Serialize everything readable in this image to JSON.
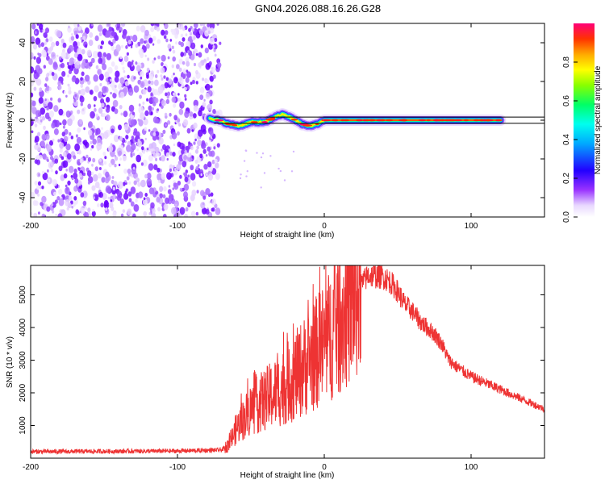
{
  "title": "GN04.2026.088.16.26.G28",
  "chart_data": [
    {
      "type": "heatmap",
      "name": "spectrogram",
      "xlabel": "Height of straight line (km)",
      "ylabel": "Frequency (Hz)",
      "xlim": [
        -200,
        150
      ],
      "ylim": [
        -50,
        50
      ],
      "xticks": [
        -200,
        -100,
        0,
        100
      ],
      "yticks": [
        -40,
        -20,
        0,
        20,
        40
      ],
      "noise_region_x": [
        -200,
        -72
      ],
      "reference_band_hz": [
        -1,
        1
      ],
      "ridge": {
        "x": [
          -78,
          -72,
          -65,
          -58,
          -50,
          -40,
          -33,
          -28,
          -22,
          -15,
          -10,
          -5,
          0,
          20,
          40,
          60,
          80,
          100,
          120
        ],
        "y": [
          1,
          0,
          -2,
          -3,
          -1,
          -1,
          2,
          3,
          1,
          -2,
          -3,
          -2,
          0,
          0,
          0,
          0,
          0,
          0,
          0
        ]
      },
      "colorbar": {
        "label": "Normalized spectral amplitude",
        "range": [
          0,
          1
        ],
        "ticks": [
          "0.0",
          "0.2",
          "0.4",
          "0.6",
          "0.8"
        ]
      }
    },
    {
      "type": "line",
      "name": "snr",
      "xlabel": "Height of straight line (km)",
      "ylabel": "SNR (10 * v/v)",
      "xlim": [
        -200,
        150
      ],
      "ylim": [
        0,
        5900
      ],
      "xticks": [
        -200,
        -100,
        0,
        100
      ],
      "yticks": [
        1000,
        2000,
        3000,
        4000,
        5000
      ],
      "color": "#ee3333",
      "envelope": {
        "x": [
          -200,
          -100,
          -70,
          -65,
          -60,
          -50,
          -40,
          -30,
          -20,
          -10,
          0,
          10,
          20,
          25,
          30,
          40,
          45,
          50,
          55,
          60,
          65,
          70,
          75,
          80,
          85,
          90,
          100,
          110,
          120,
          130,
          140,
          150
        ],
        "y": [
          200,
          220,
          250,
          400,
          900,
          1500,
          1800,
          2100,
          2500,
          3000,
          3500,
          4200,
          4900,
          5300,
          5600,
          5550,
          5400,
          5100,
          4700,
          4500,
          4200,
          4000,
          3800,
          3500,
          3000,
          2800,
          2500,
          2300,
          2100,
          1900,
          1700,
          1500
        ]
      }
    }
  ]
}
